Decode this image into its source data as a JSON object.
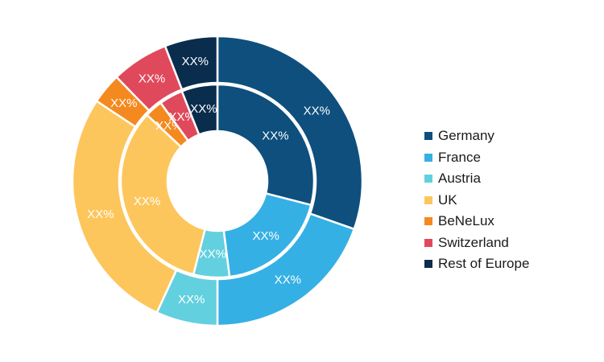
{
  "chart_data": {
    "type": "pie",
    "subtype": "nested-donut",
    "categories": [
      "Germany",
      "France",
      "Austria",
      "UK",
      "BeNeLux",
      "Switzerland",
      "Rest of Europe"
    ],
    "colors": [
      "#0e4f7d",
      "#35b0e4",
      "#62d0df",
      "#fdc65c",
      "#f48a1f",
      "#e0495b",
      "#0a2d4e"
    ],
    "series": [
      {
        "ring": "outer",
        "values": [
          31,
          20,
          7,
          28,
          3.5,
          6.5,
          6
        ],
        "labels": [
          "XX%",
          "XX%",
          "XX%",
          "XX%",
          "XX%",
          "XX%",
          "XX%"
        ]
      },
      {
        "ring": "inner",
        "values": [
          29,
          19,
          6,
          33,
          3,
          4,
          6
        ],
        "labels": [
          "XX%",
          "XX%",
          "XX%",
          "XX%",
          "XX%",
          "XX%",
          "XX%"
        ]
      }
    ],
    "legend_position": "right"
  }
}
